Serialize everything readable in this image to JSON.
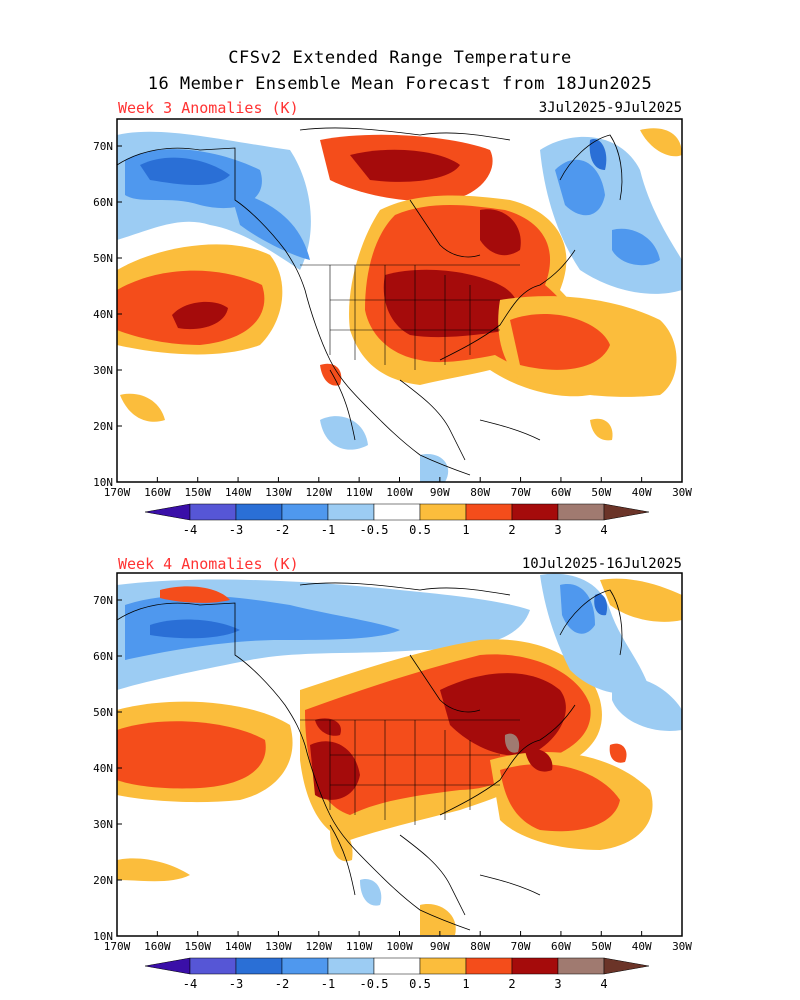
{
  "title_line1": "CFSv2 Extended Range Temperature",
  "title_line2": "16 Member Ensemble Mean Forecast from 18Jun2025",
  "panels": [
    {
      "label": "Week 3 Anomalies (K)",
      "dates": "3Jul2025-9Jul2025"
    },
    {
      "label": "Week 4 Anomalies (K)",
      "dates": "10Jul2025-16Jul2025"
    }
  ],
  "lat_labels": [
    "70N",
    "60N",
    "50N",
    "40N",
    "30N",
    "20N",
    "10N"
  ],
  "lon_labels": [
    "170W",
    "160W",
    "150W",
    "140W",
    "130W",
    "120W",
    "110W",
    "100W",
    "90W",
    "80W",
    "70W",
    "60W",
    "50W",
    "40W",
    "30W"
  ],
  "colorbar": {
    "labels": [
      "-4",
      "-3",
      "-2",
      "-1",
      "-0.5",
      "0.5",
      "1",
      "2",
      "3",
      "4"
    ],
    "colors": [
      "#3a0fa8",
      "#5656d6",
      "#2a6fd6",
      "#4f98ee",
      "#9cccf3",
      "#ffffff",
      "#fbbd3c",
      "#f44d1b",
      "#a50b0b",
      "#a07a70",
      "#6b3428"
    ]
  }
}
